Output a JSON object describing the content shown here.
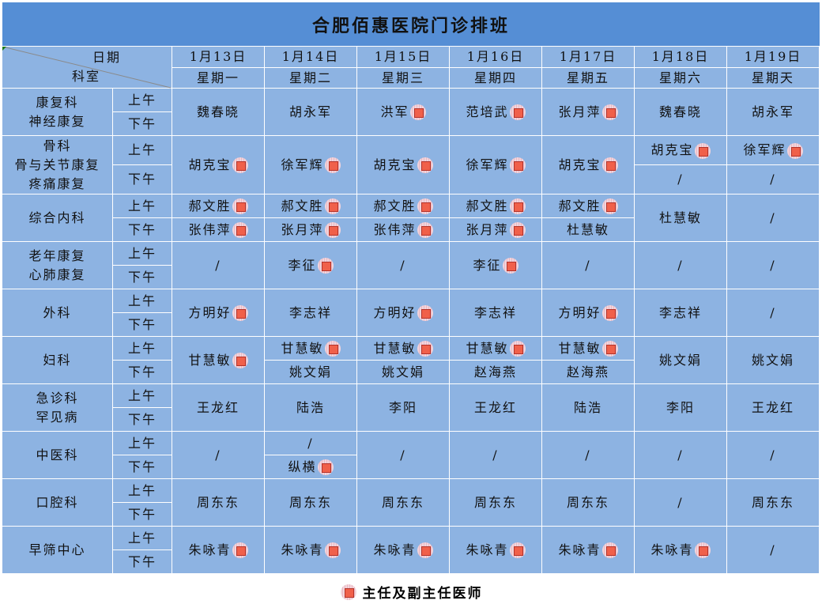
{
  "title": "合肥佰惠医院门诊排班",
  "header": {
    "date_label": "日期",
    "dept_label": "科室",
    "dates": [
      "1月13日",
      "1月14日",
      "1月15日",
      "1月16日",
      "1月17日",
      "1月18日",
      "1月19日"
    ],
    "weekdays": [
      "星期一",
      "星期二",
      "星期三",
      "星期四",
      "星期五",
      "星期六",
      "星期天"
    ]
  },
  "sessions": {
    "am": "上午",
    "pm": "下午"
  },
  "groups": [
    {
      "dept": [
        "康复科",
        "神经康复"
      ],
      "days": [
        {
          "n": "魏春晓"
        },
        {
          "n": "胡永军"
        },
        {
          "n": "洪军",
          "f": 1
        },
        {
          "n": "范培武",
          "f": 1
        },
        {
          "n": "张月萍",
          "f": 1
        },
        {
          "n": "魏春晓"
        },
        {
          "n": "胡永军"
        }
      ]
    },
    {
      "dept": [
        "骨科",
        "骨与关节康复",
        "疼痛康复"
      ],
      "days": [
        {
          "n": "胡克宝",
          "f": 1
        },
        {
          "n": "徐军辉",
          "f": 1
        },
        {
          "n": "胡克宝",
          "f": 1
        },
        {
          "n": "徐军辉",
          "f": 1
        },
        {
          "n": "胡克宝",
          "f": 1
        },
        [
          {
            "n": "胡克宝",
            "f": 1
          },
          {
            "n": "/"
          }
        ],
        [
          {
            "n": "徐军辉",
            "f": 1
          },
          {
            "n": "/"
          }
        ]
      ]
    },
    {
      "dept": [
        "综合内科"
      ],
      "days": [
        [
          {
            "n": "郝文胜",
            "f": 1
          },
          {
            "n": "张伟萍",
            "f": 1
          }
        ],
        [
          {
            "n": "郝文胜",
            "f": 1
          },
          {
            "n": "张月萍",
            "f": 1
          }
        ],
        [
          {
            "n": "郝文胜",
            "f": 1
          },
          {
            "n": "张伟萍",
            "f": 1
          }
        ],
        [
          {
            "n": "郝文胜",
            "f": 1
          },
          {
            "n": "张月萍",
            "f": 1
          }
        ],
        [
          {
            "n": "郝文胜",
            "f": 1
          },
          {
            "n": "杜慧敏"
          }
        ],
        {
          "n": "杜慧敏"
        },
        {
          "n": "/"
        }
      ]
    },
    {
      "dept": [
        "老年康复",
        "心肺康复"
      ],
      "days": [
        {
          "n": "/"
        },
        {
          "n": "李征",
          "f": 1
        },
        {
          "n": "/"
        },
        {
          "n": "李征",
          "f": 1
        },
        {
          "n": "/"
        },
        {
          "n": "/"
        },
        {
          "n": "/"
        }
      ]
    },
    {
      "dept": [
        "外科"
      ],
      "days": [
        {
          "n": "方明好",
          "f": 1
        },
        {
          "n": "李志祥"
        },
        {
          "n": "方明好",
          "f": 1
        },
        {
          "n": "李志祥"
        },
        {
          "n": "方明好",
          "f": 1
        },
        {
          "n": "李志祥"
        },
        {
          "n": "/"
        }
      ]
    },
    {
      "dept": [
        "妇科"
      ],
      "days": [
        {
          "n": "甘慧敏",
          "f": 1
        },
        [
          {
            "n": "甘慧敏",
            "f": 1
          },
          {
            "n": "姚文娟"
          }
        ],
        [
          {
            "n": "甘慧敏",
            "f": 1
          },
          {
            "n": "姚文娟"
          }
        ],
        [
          {
            "n": "甘慧敏",
            "f": 1
          },
          {
            "n": "赵海燕"
          }
        ],
        [
          {
            "n": "甘慧敏",
            "f": 1
          },
          {
            "n": "赵海燕"
          }
        ],
        {
          "n": "姚文娟"
        },
        {
          "n": "姚文娟"
        }
      ]
    },
    {
      "dept": [
        "急诊科",
        "罕见病"
      ],
      "days": [
        {
          "n": "王龙红"
        },
        {
          "n": "陆浩"
        },
        {
          "n": "李阳"
        },
        {
          "n": "王龙红"
        },
        {
          "n": "陆浩"
        },
        {
          "n": "李阳"
        },
        {
          "n": "王龙红"
        }
      ]
    },
    {
      "dept": [
        "中医科"
      ],
      "days": [
        {
          "n": "/"
        },
        [
          {
            "n": "/"
          },
          {
            "n": "纵横",
            "f": 1
          }
        ],
        {
          "n": "/"
        },
        {
          "n": "/"
        },
        {
          "n": "/"
        },
        {
          "n": "/"
        },
        {
          "n": "/"
        }
      ]
    },
    {
      "dept": [
        "口腔科"
      ],
      "days": [
        {
          "n": "周东东"
        },
        {
          "n": "周东东"
        },
        {
          "n": "周东东"
        },
        {
          "n": "周东东"
        },
        {
          "n": "周东东"
        },
        {
          "n": "/"
        },
        {
          "n": "周东东"
        }
      ]
    },
    {
      "dept": [
        "早筛中心"
      ],
      "days": [
        {
          "n": "朱咏青",
          "f": 1
        },
        {
          "n": "朱咏青",
          "f": 1
        },
        {
          "n": "朱咏青",
          "f": 1
        },
        {
          "n": "朱咏青",
          "f": 1
        },
        {
          "n": "朱咏青",
          "f": 1
        },
        {
          "n": "朱咏青",
          "f": 1
        },
        {
          "n": "/"
        }
      ]
    }
  ],
  "legend": {
    "icon": "senior-physician-badge",
    "label": "主任及副主任医师"
  },
  "colors": {
    "title_bg": "#558ED5",
    "cell_bg": "#8DB3E2",
    "badge_square": "#F0604A"
  }
}
